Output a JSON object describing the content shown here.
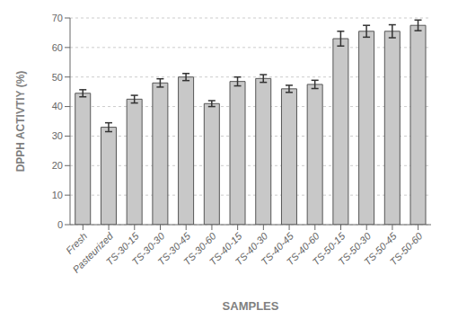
{
  "chart_data": {
    "type": "bar",
    "xlabel": "SAMPLES",
    "ylabel": "DPPH ACTIVTIY (%)",
    "categories": [
      "Fresh",
      "Pasteurized",
      "TS-30-15",
      "TS-30-30",
      "TS-30-45",
      "TS-30-60",
      "TS-40-15",
      "TS-40-30",
      "TS-40-45",
      "TS-40-60",
      "TS-50-15",
      "TS-50-30",
      "TS-50-45",
      "TS-50-60"
    ],
    "values": [
      44.5,
      33.0,
      42.5,
      48.0,
      50.0,
      41.0,
      48.5,
      49.5,
      46.0,
      47.5,
      63.0,
      65.5,
      65.5,
      67.5
    ],
    "errors": [
      1.2,
      1.5,
      1.3,
      1.4,
      1.2,
      1.0,
      1.5,
      1.3,
      1.2,
      1.4,
      2.5,
      2.0,
      2.2,
      1.8
    ],
    "color": "#c8c8c8",
    "ylim": [
      0,
      70
    ],
    "yticks": [
      0,
      10,
      20,
      30,
      40,
      50,
      60,
      70
    ],
    "grid": true
  }
}
